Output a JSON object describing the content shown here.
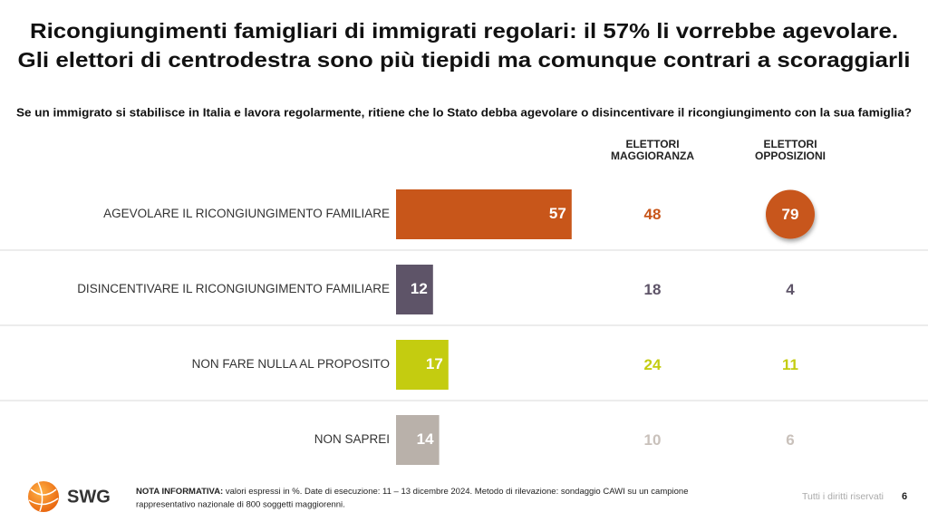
{
  "chart_data": {
    "type": "bar",
    "title": [
      "Ricongiungimenti famigliari di immigrati regolari: il 57% li vorrebbe agevolare.",
      "Gli elettori di centrodestra sono più tiepidi ma comunque contrari a scoraggiarli"
    ],
    "subtitle": "Se un immigrato si stabilisce in Italia e lavora regolarmente, ritiene che lo Stato debba agevolare o disincentivare il ricongiungimento con la sua famiglia?",
    "categories": [
      "AGEVOLARE IL RICONGIUNGIMENTO FAMILIARE",
      "DISINCENTIVARE IL RICONGIUNGIMENTO FAMILIARE",
      "NON FARE NULLA AL PROPOSITO",
      "NON SAPREI"
    ],
    "values": [
      57,
      12,
      17,
      14
    ],
    "colors": [
      "#c8561a",
      "#5e5468",
      "#c4cc10",
      "#b9b1aa"
    ],
    "columns": [
      {
        "name": [
          "ELETTORI",
          "MAGGIORANZA"
        ],
        "values": [
          48,
          18,
          24,
          10
        ]
      },
      {
        "name": [
          "ELETTORI",
          "OPPOSIZIONI"
        ],
        "values": [
          79,
          4,
          11,
          6
        ]
      }
    ],
    "note_label": "NOTA INFORMATIVA:",
    "note_lines": [
      "valori espressi in %. Date di esecuzione: 11 – 13 dicembre 2024. Metodo di rilevazione: sondaggio CAWI su un campione",
      "rappresentativo nazionale di 800 soggetti maggiorenni."
    ],
    "logo": "SWG",
    "copyright": "Tutti i diritti riservati",
    "page": "6"
  }
}
